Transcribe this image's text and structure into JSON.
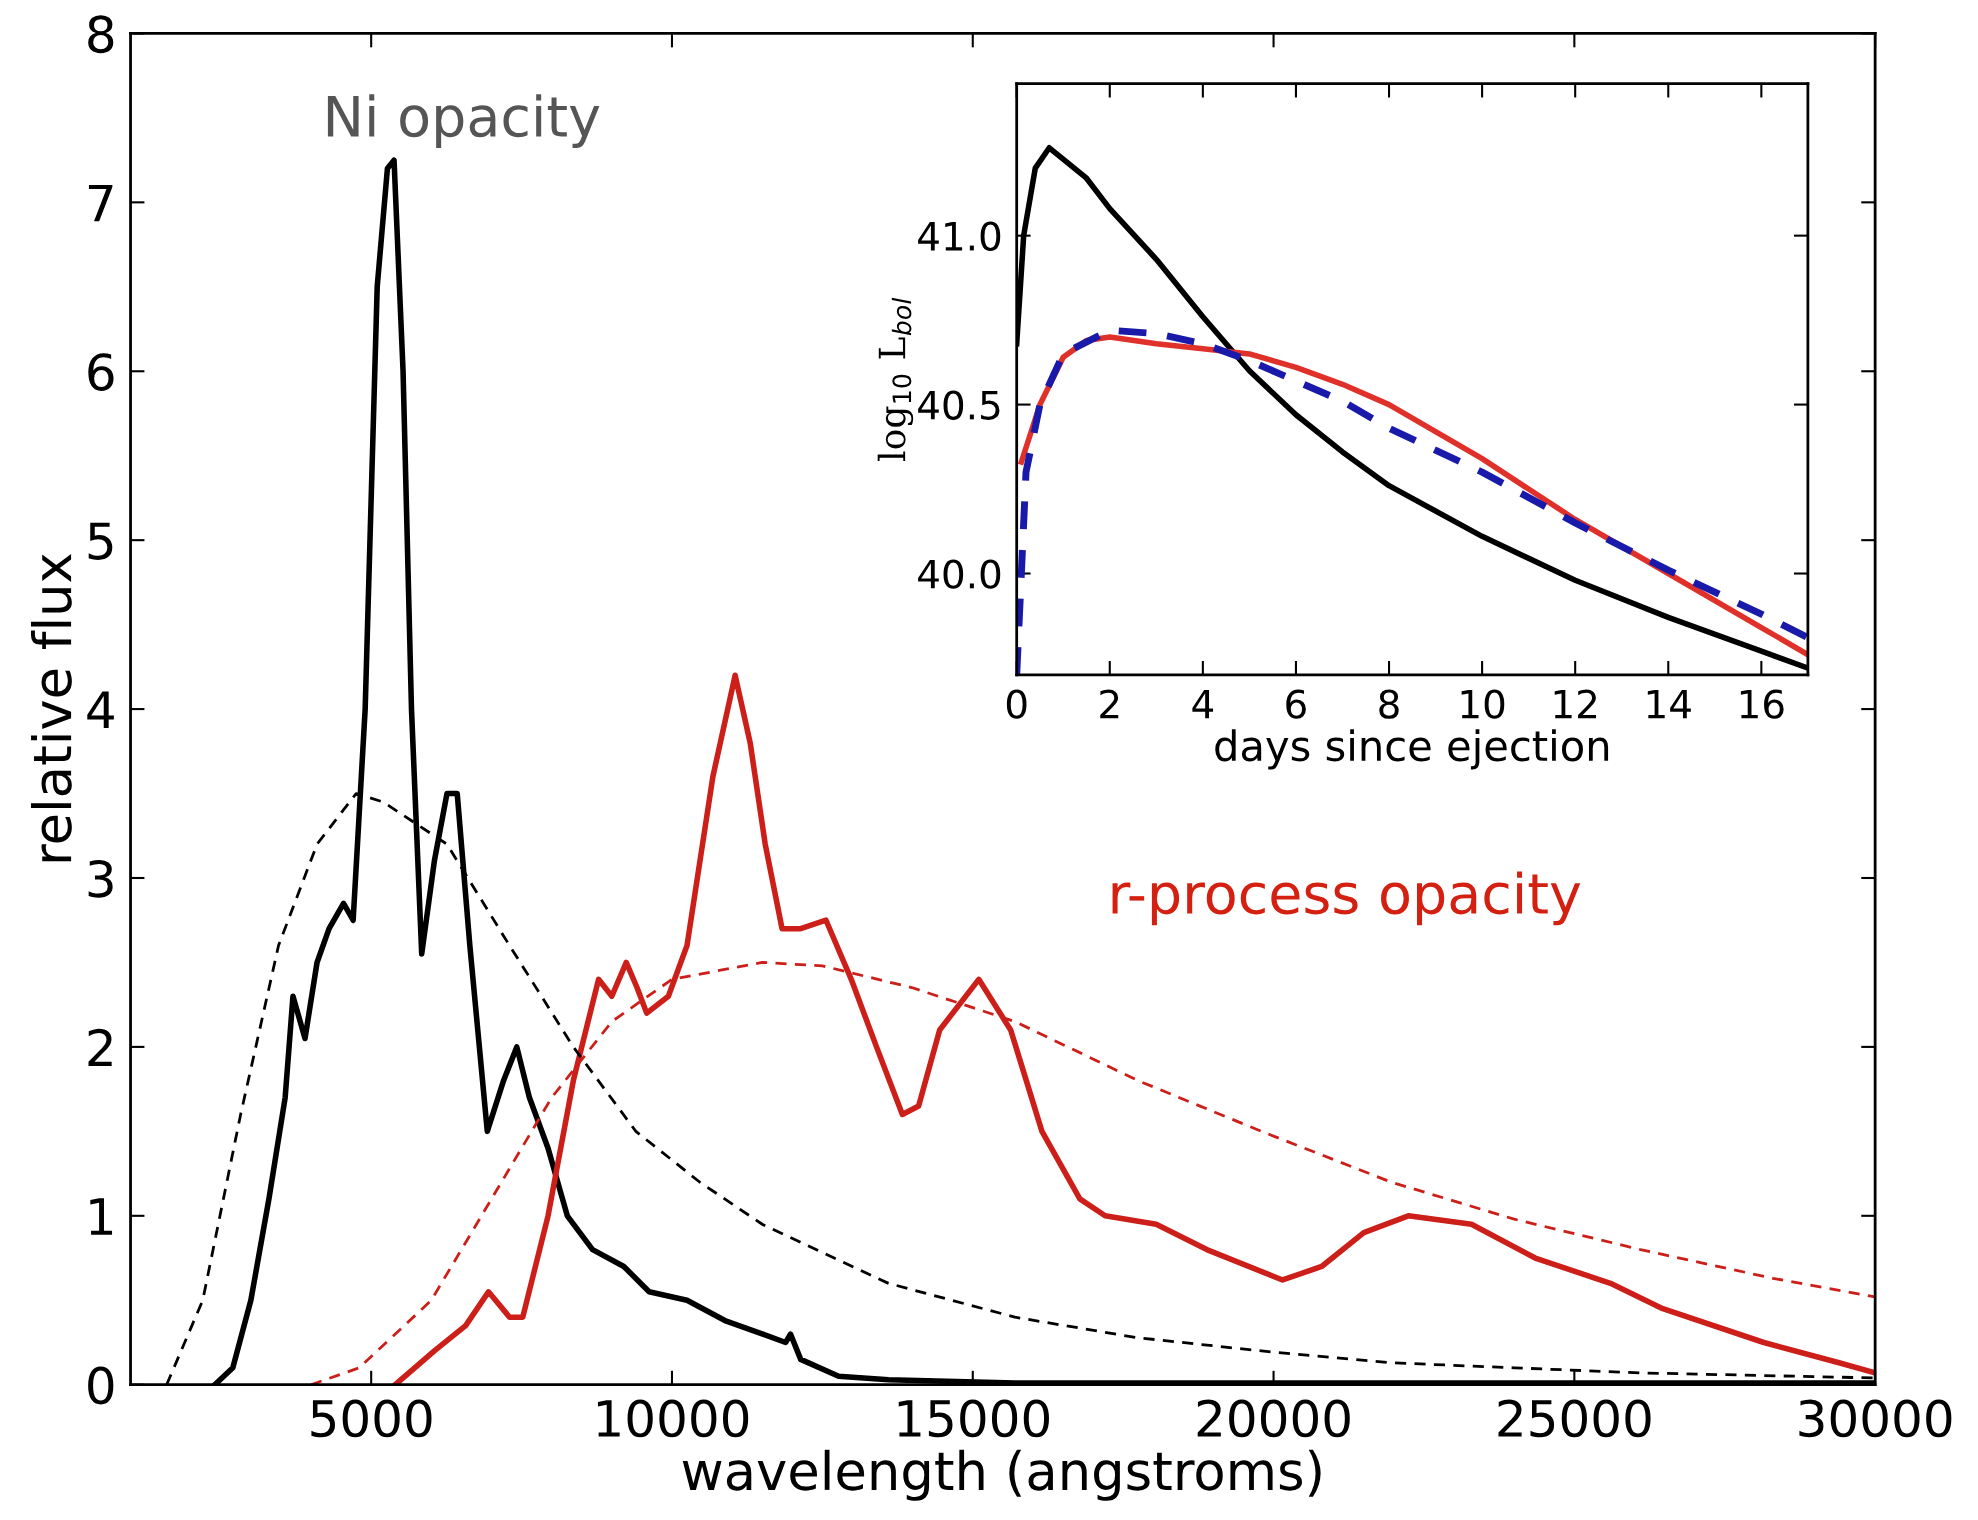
{
  "chart_data": [
    {
      "type": "line",
      "xlabel": "wavelength (angstroms)",
      "ylabel": "relative flux",
      "xlim": [
        1000,
        30000
      ],
      "ylim": [
        0,
        8
      ],
      "xticks": [
        5000,
        10000,
        15000,
        20000,
        25000,
        30000
      ],
      "yticks": [
        0,
        1,
        2,
        3,
        4,
        5,
        6,
        7,
        8
      ],
      "grid": false,
      "legend": false,
      "annotations": [
        "Ni opacity",
        "r-process opacity"
      ],
      "series": [
        {
          "color": "#000000",
          "line_style": "solid",
          "x": [
            2400,
            2700,
            3000,
            3300,
            3570,
            3700,
            3900,
            4100,
            4300,
            4540,
            4700,
            4900,
            5100,
            5270,
            5380,
            5530,
            5670,
            5840,
            6050,
            6260,
            6430,
            6640,
            6930,
            7200,
            7420,
            7630,
            7940,
            8260,
            8680,
            9200,
            9620,
            10250,
            10880,
            11510,
            11890,
            11970,
            12140,
            12770,
            13600,
            15700,
            22000,
            30000
          ],
          "values": [
            0,
            0.1,
            0.5,
            1.1,
            1.7,
            2.3,
            2.05,
            2.5,
            2.7,
            2.85,
            2.75,
            4.0,
            6.5,
            7.2,
            7.25,
            6.0,
            4.0,
            2.55,
            3.1,
            3.5,
            3.5,
            2.6,
            1.5,
            1.8,
            2.0,
            1.7,
            1.4,
            1.0,
            0.8,
            0.7,
            0.55,
            0.5,
            0.38,
            0.3,
            0.25,
            0.3,
            0.15,
            0.05,
            0.03,
            0.01,
            0.01,
            0.01
          ]
        },
        {
          "color": "#cc1f1a",
          "line_style": "solid",
          "x": [
            5400,
            6050,
            6570,
            6950,
            7300,
            7520,
            7940,
            8360,
            8780,
            9000,
            9240,
            9420,
            9580,
            9940,
            10250,
            10680,
            11050,
            11300,
            11550,
            11830,
            12140,
            12560,
            12980,
            13400,
            13830,
            14100,
            14450,
            15100,
            15630,
            16150,
            16780,
            17200,
            18050,
            18890,
            20150,
            20800,
            21500,
            22240,
            23290,
            24350,
            25600,
            26470,
            28150,
            29400,
            30000
          ],
          "values": [
            0,
            0.2,
            0.35,
            0.55,
            0.4,
            0.4,
            1.0,
            1.8,
            2.4,
            2.3,
            2.5,
            2.35,
            2.2,
            2.3,
            2.6,
            3.6,
            4.2,
            3.8,
            3.2,
            2.7,
            2.7,
            2.75,
            2.4,
            2.0,
            1.6,
            1.65,
            2.1,
            2.4,
            2.1,
            1.5,
            1.1,
            1.0,
            0.95,
            0.8,
            0.62,
            0.7,
            0.9,
            1.0,
            0.95,
            0.75,
            0.6,
            0.45,
            0.25,
            0.13,
            0.07
          ]
        },
        {
          "color": "#000000",
          "line_style": "dashed",
          "x": [
            1600,
            2200,
            2830,
            3460,
            4100,
            4750,
            5200,
            6260,
            7300,
            8360,
            9400,
            10460,
            11500,
            13600,
            15700,
            17700,
            19800,
            21950,
            24000,
            26100,
            30000
          ],
          "values": [
            0,
            0.5,
            1.6,
            2.6,
            3.2,
            3.5,
            3.45,
            3.2,
            2.6,
            2.0,
            1.5,
            1.2,
            0.95,
            0.6,
            0.4,
            0.28,
            0.2,
            0.13,
            0.1,
            0.07,
            0.04
          ]
        },
        {
          "color": "#cc1f1a",
          "line_style": "dashed",
          "x": [
            4000,
            4800,
            6000,
            7000,
            8000,
            9000,
            10000,
            11500,
            12500,
            14000,
            15700,
            17750,
            19800,
            21950,
            24000,
            26100,
            28300,
            30000
          ],
          "values": [
            0,
            0.1,
            0.5,
            1.1,
            1.7,
            2.15,
            2.4,
            2.5,
            2.48,
            2.35,
            2.15,
            1.8,
            1.5,
            1.2,
            0.98,
            0.8,
            0.63,
            0.52
          ]
        }
      ]
    },
    {
      "type": "line",
      "xlabel": "days since ejection",
      "ylabel": "log$_{10}$ L$_{bol}$",
      "xlim": [
        0,
        17
      ],
      "ylim": [
        39.7,
        41.45
      ],
      "xticks": [
        0,
        2,
        4,
        6,
        8,
        10,
        12,
        14,
        16
      ],
      "yticks": [
        {
          "value": 40.0,
          "label": "40.0"
        },
        {
          "value": 40.5,
          "label": "40.5"
        },
        {
          "value": 41.0,
          "label": "41.0"
        }
      ],
      "grid": false,
      "legend": false,
      "series": [
        {
          "color": "#000000",
          "line_style": "solid",
          "x": [
            0,
            0.15,
            0.4,
            0.7,
            1.5,
            2,
            3,
            4,
            5,
            6,
            7,
            8,
            10,
            12,
            14,
            16,
            17
          ],
          "values": [
            40.68,
            41.0,
            41.2,
            41.26,
            41.17,
            41.08,
            40.93,
            40.76,
            40.6,
            40.47,
            40.36,
            40.26,
            40.11,
            39.98,
            39.87,
            39.77,
            39.72
          ]
        },
        {
          "color": "#e0302a",
          "line_style": "solid",
          "x": [
            0.1,
            0.5,
            1,
            1.5,
            2,
            3,
            4,
            5,
            6,
            7,
            8,
            10,
            12,
            14,
            16,
            17
          ],
          "values": [
            40.33,
            40.5,
            40.64,
            40.69,
            40.7,
            40.68,
            40.665,
            40.65,
            40.61,
            40.56,
            40.5,
            40.34,
            40.16,
            40.0,
            39.84,
            39.76
          ]
        },
        {
          "color": "#1a1aaa",
          "line_style": "dashed",
          "x": [
            0,
            0.1,
            0.2,
            0.5,
            1,
            2,
            3,
            4,
            5,
            6,
            7,
            8,
            10,
            12,
            14,
            16,
            17
          ],
          "values": [
            39.7,
            40.0,
            40.3,
            40.5,
            40.65,
            40.72,
            40.71,
            40.68,
            40.63,
            40.57,
            40.51,
            40.43,
            40.3,
            40.15,
            40.01,
            39.88,
            39.81
          ]
        }
      ]
    }
  ]
}
